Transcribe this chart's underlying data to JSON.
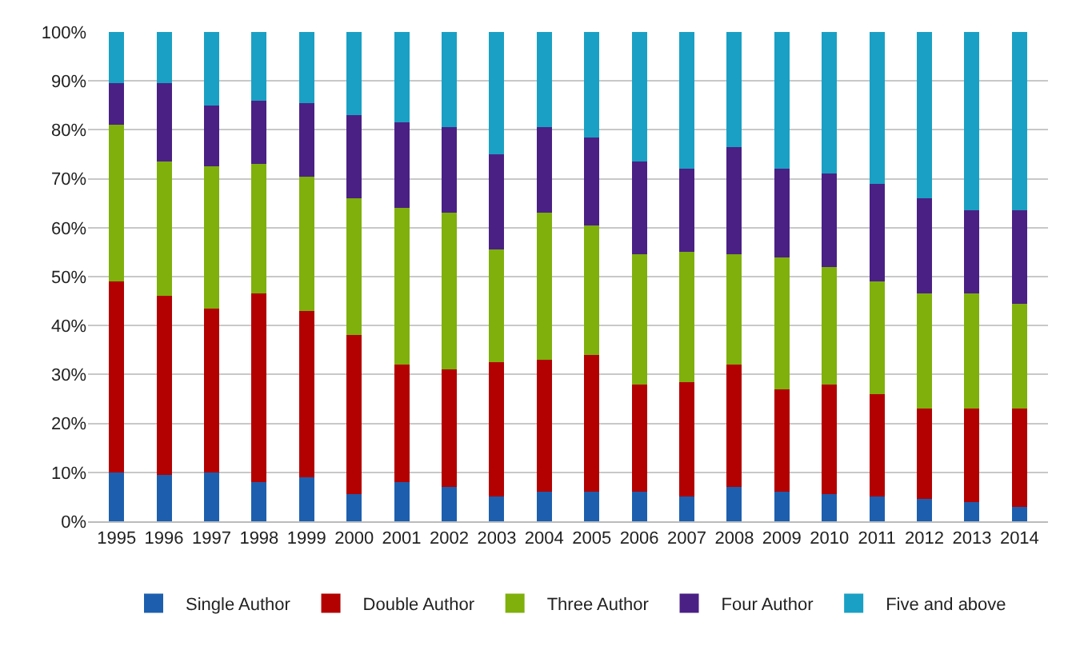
{
  "chart_data": {
    "type": "bar",
    "stacked": true,
    "categories": [
      "1995",
      "1996",
      "1997",
      "1998",
      "1999",
      "2000",
      "2001",
      "2002",
      "2003",
      "2004",
      "2005",
      "2006",
      "2007",
      "2008",
      "2009",
      "2010",
      "2011",
      "2012",
      "2013",
      "2014"
    ],
    "series": [
      {
        "name": "Single Author",
        "color": "#1d5fae",
        "values": [
          10,
          9.5,
          10,
          8,
          9,
          5.5,
          8,
          7,
          5,
          6,
          6,
          6,
          5,
          7,
          6,
          5.5,
          5,
          4.5,
          4,
          3
        ]
      },
      {
        "name": "Double Author",
        "color": "#b30000",
        "values": [
          39,
          36.5,
          33.5,
          38.5,
          34,
          32.5,
          24,
          24,
          27.5,
          27,
          28,
          22,
          23.5,
          25,
          21,
          22.5,
          21,
          18.5,
          19,
          20
        ]
      },
      {
        "name": "Three Author",
        "color": "#7fb00c",
        "values": [
          32,
          27.5,
          29,
          26.5,
          27.5,
          28,
          32,
          32,
          23,
          30,
          26.5,
          26.5,
          26.5,
          22.5,
          27,
          24,
          23,
          23.5,
          23.5,
          21.5
        ]
      },
      {
        "name": "Four Author",
        "color": "#4a2085",
        "values": [
          8.5,
          16,
          12.5,
          13,
          15,
          17,
          17.5,
          17.5,
          19.5,
          17.5,
          18,
          19,
          17,
          22,
          18,
          19,
          20,
          19.5,
          17,
          19
        ]
      },
      {
        "name": "Five and above",
        "color": "#1aa0c4",
        "values": [
          10.5,
          10.5,
          15,
          14,
          14.5,
          17,
          18.5,
          19.5,
          25,
          19.5,
          21.5,
          26.5,
          28,
          23.5,
          28,
          29,
          31,
          34,
          36.5,
          36.5
        ]
      }
    ],
    "ylim": [
      0,
      100
    ],
    "yticks": [
      {
        "value": 0,
        "label": "0%"
      },
      {
        "value": 10,
        "label": "10%"
      },
      {
        "value": 20,
        "label": "20%"
      },
      {
        "value": 30,
        "label": "30%"
      },
      {
        "value": 40,
        "label": "40%"
      },
      {
        "value": 50,
        "label": "50%"
      },
      {
        "value": 60,
        "label": "60%"
      },
      {
        "value": 70,
        "label": "70%"
      },
      {
        "value": 80,
        "label": "80%"
      },
      {
        "value": 90,
        "label": "90%"
      },
      {
        "value": 100,
        "label": "100%"
      }
    ],
    "grid": "y",
    "legend": "bottom"
  }
}
